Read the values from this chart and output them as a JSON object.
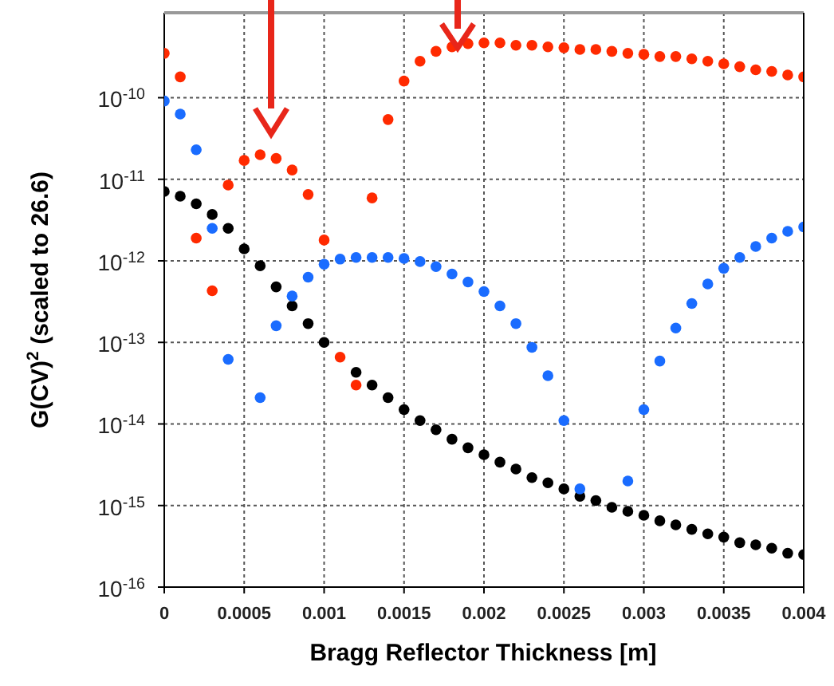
{
  "chart_data": {
    "type": "scatter",
    "xlabel": "Bragg Reflector Thickness [m]",
    "ylabel": "G(CV)$^{2}$ (scaled to 26.6)",
    "x": [
      0,
      0.0001,
      0.0002,
      0.0003,
      0.0004,
      0.0005,
      0.0006,
      0.0007,
      0.0008,
      0.0009,
      0.001,
      0.0011,
      0.0012,
      0.0013,
      0.0014,
      0.0015,
      0.0016,
      0.0017,
      0.0018,
      0.0019,
      0.002,
      0.0021,
      0.0022,
      0.0023,
      0.0024,
      0.0025,
      0.0026,
      0.0027,
      0.0028,
      0.0029,
      0.003,
      0.0031,
      0.0032,
      0.0033,
      0.0034,
      0.0035,
      0.0036,
      0.0037,
      0.0038,
      0.0039,
      0.004
    ],
    "series": [
      {
        "color": "#ff2a00",
        "values": [
          3.5e-10,
          1.8e-10,
          1.9e-12,
          4.3e-13,
          8.5e-12,
          1.7e-11,
          2e-11,
          1.8e-11,
          1.3e-11,
          6.5e-12,
          1.8e-12,
          6.6e-14,
          3e-14,
          5.9e-12,
          5.4e-11,
          1.6e-10,
          2.8e-10,
          3.7e-10,
          4.2e-10,
          4.6e-10,
          4.7e-10,
          4.7e-10,
          4.4e-10,
          4.4e-10,
          4.2e-10,
          4.1e-10,
          3.9e-10,
          3.9e-10,
          3.7e-10,
          3.5e-10,
          3.4e-10,
          3.2e-10,
          3.2e-10,
          3e-10,
          2.8e-10,
          2.6e-10,
          2.4e-10,
          2.2e-10,
          2.1e-10,
          1.9e-10,
          1.8e-10
        ]
      },
      {
        "color": "#1a6cff",
        "values": [
          9.1e-11,
          6.3e-11,
          2.3e-11,
          2.5e-12,
          6.2e-14,
          null,
          2.1e-14,
          1.6e-13,
          3.7e-13,
          6.3e-13,
          9.1e-13,
          1.05e-12,
          1.1e-12,
          1.1e-12,
          1.1e-12,
          1.07e-12,
          9.8e-13,
          8.5e-13,
          6.9e-13,
          5.5e-13,
          4.2e-13,
          2.8e-13,
          1.7e-13,
          8.7e-14,
          3.9e-14,
          1.1e-14,
          1.6e-15,
          null,
          null,
          2e-15,
          1.5e-14,
          5.9e-14,
          1.5e-13,
          3e-13,
          5.2e-13,
          8.1e-13,
          1.1e-12,
          1.5e-12,
          1.9e-12,
          2.3e-12,
          2.6e-12
        ]
      },
      {
        "color": "#000000",
        "values": [
          7.1e-12,
          6.2e-12,
          5e-12,
          3.7e-12,
          2.5e-12,
          1.4e-12,
          8.7e-13,
          4.8e-13,
          2.8e-13,
          1.7e-13,
          1e-13,
          null,
          4.3e-14,
          3e-14,
          2.1e-14,
          1.5e-14,
          1.1e-14,
          8.5e-15,
          6.5e-15,
          5.1e-15,
          4.2e-15,
          3.4e-15,
          2.8e-15,
          2.2e-15,
          1.9e-15,
          1.6e-15,
          1.3e-15,
          1.15e-15,
          9.5e-16,
          8.5e-16,
          7.6e-16,
          6.5e-16,
          5.8e-16,
          5.1e-16,
          4.5e-16,
          4.1e-16,
          3.5e-16,
          3.3e-16,
          3e-16,
          2.6e-16,
          2.5e-16
        ]
      }
    ],
    "xlim": [
      0,
      0.004
    ],
    "xticks": [
      0,
      0.0005,
      0.001,
      0.0015,
      0.002,
      0.0025,
      0.003,
      0.0035,
      0.004
    ],
    "ylim": [
      1e-16,
      1.1e-09
    ],
    "yticks": [
      {
        "value": 1e-16,
        "label": "10$^{-16}$"
      },
      {
        "value": 1e-15,
        "label": "10$^{-15}$"
      },
      {
        "value": 1e-14,
        "label": "10$^{-14}$"
      },
      {
        "value": 1e-13,
        "label": "10$^{-13}$"
      },
      {
        "value": 1e-12,
        "label": "10$^{-12}$"
      },
      {
        "value": 1e-11,
        "label": "10$^{-11}$"
      },
      {
        "value": 1e-10,
        "label": "10$^{-10}$"
      }
    ],
    "log": "y",
    "grid": true,
    "marker": "circle"
  }
}
